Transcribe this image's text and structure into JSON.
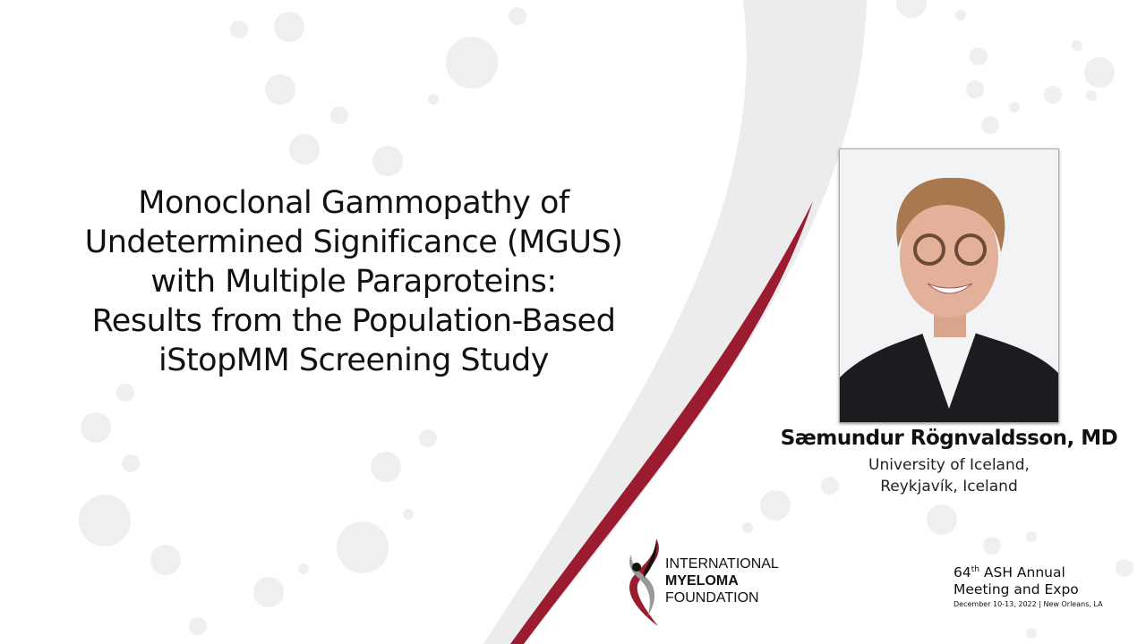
{
  "title": {
    "lines": [
      "Monoclonal Gammopathy of",
      "Undetermined Significance (MGUS)",
      "with Multiple Paraproteins:",
      "Results from the Population-Based",
      "iStopMM Screening Study"
    ]
  },
  "speaker": {
    "name": "Sæmundur Rögnvaldsson, MD",
    "affiliation_line1": "University of Iceland,",
    "affiliation_line2": "Reykjavík, Iceland"
  },
  "logo": {
    "line1": "INTERNATIONAL",
    "line2": "MYELOMA",
    "line3": "FOUNDATION"
  },
  "event": {
    "ordinal": "64",
    "ordinal_suffix": "th",
    "line1_rest": " ASH Annual",
    "line2": "Meeting and Expo",
    "date_location": "December 10-13, 2022 | New Orleans, LA"
  },
  "colors": {
    "accent_red": "#9b1b30",
    "bubble_gray": "#eeeeee",
    "text": "#111111"
  }
}
